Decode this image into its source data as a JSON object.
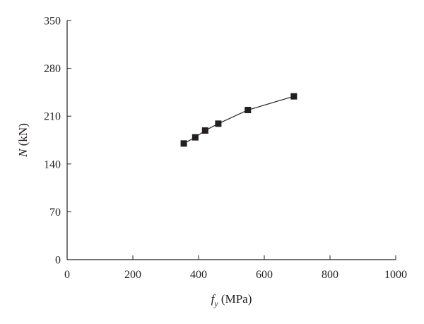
{
  "chart_data": {
    "type": "line",
    "title": "",
    "xlabel": {
      "symbol": "f",
      "subscript": "y",
      "unit": " (MPa)"
    },
    "ylabel": {
      "symbol": "N",
      "unit": " (kN)"
    },
    "xlim": [
      0,
      1000
    ],
    "ylim": [
      0,
      350
    ],
    "xticks": [
      0,
      200,
      400,
      600,
      800,
      1000
    ],
    "yticks": [
      0,
      70,
      140,
      210,
      280,
      350
    ],
    "grid": false,
    "legend": "none",
    "series": [
      {
        "marker": "square",
        "color": "#231f20",
        "x": [
          355,
          390,
          420,
          460,
          550,
          690
        ],
        "y": [
          170,
          179,
          189,
          199,
          219,
          239
        ]
      }
    ]
  }
}
